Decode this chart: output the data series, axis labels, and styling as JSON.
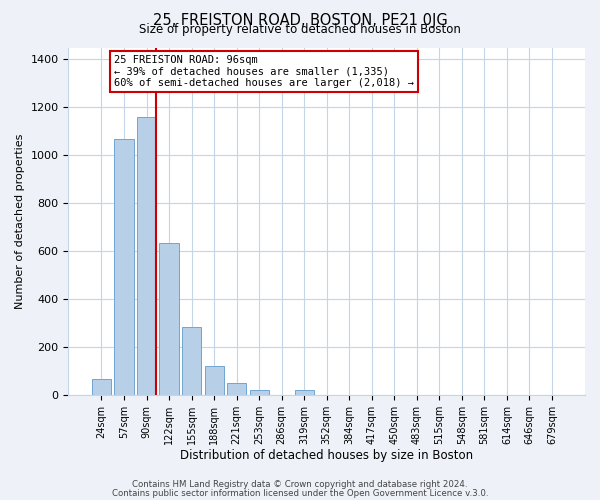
{
  "title": "25, FREISTON ROAD, BOSTON, PE21 0JG",
  "subtitle": "Size of property relative to detached houses in Boston",
  "xlabel": "Distribution of detached houses by size in Boston",
  "ylabel": "Number of detached properties",
  "bar_labels": [
    "24sqm",
    "57sqm",
    "90sqm",
    "122sqm",
    "155sqm",
    "188sqm",
    "221sqm",
    "253sqm",
    "286sqm",
    "319sqm",
    "352sqm",
    "384sqm",
    "417sqm",
    "450sqm",
    "483sqm",
    "515sqm",
    "548sqm",
    "581sqm",
    "614sqm",
    "646sqm",
    "679sqm"
  ],
  "bar_values": [
    67,
    1070,
    1160,
    635,
    285,
    120,
    48,
    20,
    0,
    20,
    0,
    0,
    0,
    0,
    0,
    0,
    0,
    0,
    0,
    0,
    0
  ],
  "bar_color": "#b8cfe8",
  "bar_edge_color": "#6ea6d0",
  "vline_color": "#cc0000",
  "annotation_line1": "25 FREISTON ROAD: 96sqm",
  "annotation_line2": "← 39% of detached houses are smaller (1,335)",
  "annotation_line3": "60% of semi-detached houses are larger (2,018) →",
  "annotation_box_color": "#ffffff",
  "annotation_box_edge_color": "#cc0000",
  "ylim": [
    0,
    1450
  ],
  "yticks": [
    0,
    200,
    400,
    600,
    800,
    1000,
    1200,
    1400
  ],
  "footer1": "Contains HM Land Registry data © Crown copyright and database right 2024.",
  "footer2": "Contains public sector information licensed under the Open Government Licence v.3.0.",
  "bg_color": "#eef2f8",
  "plot_bg_color": "#ffffff",
  "grid_color": "#c5d5e8"
}
